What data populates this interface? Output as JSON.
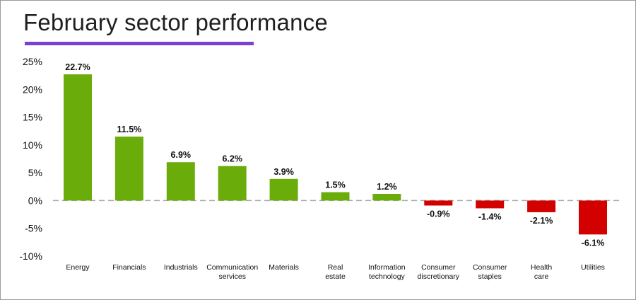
{
  "title": "February sector performance",
  "colors": {
    "positive": "#6aad0a",
    "negative": "#d30000",
    "accent_underline": "#7b3fd1",
    "zero_line": "#aaaaaa"
  },
  "chart_data": {
    "type": "bar",
    "title": "February sector performance",
    "xlabel": "",
    "ylabel": "",
    "ylim": [
      -10,
      25
    ],
    "yticks": [
      25,
      20,
      15,
      10,
      5,
      0,
      -5,
      -10
    ],
    "ytick_labels": [
      "25%",
      "20%",
      "15%",
      "10%",
      "5%",
      "0%",
      "-5%",
      "-10%"
    ],
    "grid": false,
    "zero_line": "dashed",
    "categories": [
      [
        "Energy"
      ],
      [
        "Financials"
      ],
      [
        "Industrials"
      ],
      [
        "Communication",
        "services"
      ],
      [
        "Materials"
      ],
      [
        "Real",
        "estate"
      ],
      [
        "Information",
        "technology"
      ],
      [
        "Consumer",
        "discretionary"
      ],
      [
        "Consumer",
        "staples"
      ],
      [
        "Health",
        "care"
      ],
      [
        "Utilities"
      ]
    ],
    "values": [
      22.7,
      11.5,
      6.9,
      6.2,
      3.9,
      1.5,
      1.2,
      -0.9,
      -1.4,
      -2.1,
      -6.1
    ],
    "data_labels": [
      "22.7%",
      "11.5%",
      "6.9%",
      "6.2%",
      "3.9%",
      "1.5%",
      "1.2%",
      "-0.9%",
      "-1.4%",
      "-2.1%",
      "-6.1%"
    ]
  }
}
